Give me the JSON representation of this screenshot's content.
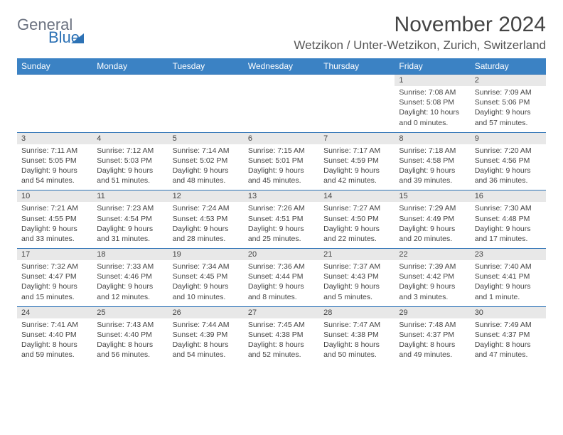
{
  "logo": {
    "line1": "General",
    "line2": "Blue"
  },
  "title": "November 2024",
  "location": "Wetzikon / Unter-Wetzikon, Zurich, Switzerland",
  "day_headers": [
    "Sunday",
    "Monday",
    "Tuesday",
    "Wednesday",
    "Thursday",
    "Friday",
    "Saturday"
  ],
  "colors": {
    "header_bg": "#3b82c4",
    "header_text": "#ffffff",
    "date_bg": "#e8e8e8",
    "border": "#2d72b5"
  },
  "weeks": [
    {
      "dates": [
        "",
        "",
        "",
        "",
        "",
        "1",
        "2"
      ],
      "cells": [
        "",
        "",
        "",
        "",
        "",
        "Sunrise: 7:08 AM\nSunset: 5:08 PM\nDaylight: 10 hours and 0 minutes.",
        "Sunrise: 7:09 AM\nSunset: 5:06 PM\nDaylight: 9 hours and 57 minutes."
      ]
    },
    {
      "dates": [
        "3",
        "4",
        "5",
        "6",
        "7",
        "8",
        "9"
      ],
      "cells": [
        "Sunrise: 7:11 AM\nSunset: 5:05 PM\nDaylight: 9 hours and 54 minutes.",
        "Sunrise: 7:12 AM\nSunset: 5:03 PM\nDaylight: 9 hours and 51 minutes.",
        "Sunrise: 7:14 AM\nSunset: 5:02 PM\nDaylight: 9 hours and 48 minutes.",
        "Sunrise: 7:15 AM\nSunset: 5:01 PM\nDaylight: 9 hours and 45 minutes.",
        "Sunrise: 7:17 AM\nSunset: 4:59 PM\nDaylight: 9 hours and 42 minutes.",
        "Sunrise: 7:18 AM\nSunset: 4:58 PM\nDaylight: 9 hours and 39 minutes.",
        "Sunrise: 7:20 AM\nSunset: 4:56 PM\nDaylight: 9 hours and 36 minutes."
      ]
    },
    {
      "dates": [
        "10",
        "11",
        "12",
        "13",
        "14",
        "15",
        "16"
      ],
      "cells": [
        "Sunrise: 7:21 AM\nSunset: 4:55 PM\nDaylight: 9 hours and 33 minutes.",
        "Sunrise: 7:23 AM\nSunset: 4:54 PM\nDaylight: 9 hours and 31 minutes.",
        "Sunrise: 7:24 AM\nSunset: 4:53 PM\nDaylight: 9 hours and 28 minutes.",
        "Sunrise: 7:26 AM\nSunset: 4:51 PM\nDaylight: 9 hours and 25 minutes.",
        "Sunrise: 7:27 AM\nSunset: 4:50 PM\nDaylight: 9 hours and 22 minutes.",
        "Sunrise: 7:29 AM\nSunset: 4:49 PM\nDaylight: 9 hours and 20 minutes.",
        "Sunrise: 7:30 AM\nSunset: 4:48 PM\nDaylight: 9 hours and 17 minutes."
      ]
    },
    {
      "dates": [
        "17",
        "18",
        "19",
        "20",
        "21",
        "22",
        "23"
      ],
      "cells": [
        "Sunrise: 7:32 AM\nSunset: 4:47 PM\nDaylight: 9 hours and 15 minutes.",
        "Sunrise: 7:33 AM\nSunset: 4:46 PM\nDaylight: 9 hours and 12 minutes.",
        "Sunrise: 7:34 AM\nSunset: 4:45 PM\nDaylight: 9 hours and 10 minutes.",
        "Sunrise: 7:36 AM\nSunset: 4:44 PM\nDaylight: 9 hours and 8 minutes.",
        "Sunrise: 7:37 AM\nSunset: 4:43 PM\nDaylight: 9 hours and 5 minutes.",
        "Sunrise: 7:39 AM\nSunset: 4:42 PM\nDaylight: 9 hours and 3 minutes.",
        "Sunrise: 7:40 AM\nSunset: 4:41 PM\nDaylight: 9 hours and 1 minute."
      ]
    },
    {
      "dates": [
        "24",
        "25",
        "26",
        "27",
        "28",
        "29",
        "30"
      ],
      "cells": [
        "Sunrise: 7:41 AM\nSunset: 4:40 PM\nDaylight: 8 hours and 59 minutes.",
        "Sunrise: 7:43 AM\nSunset: 4:40 PM\nDaylight: 8 hours and 56 minutes.",
        "Sunrise: 7:44 AM\nSunset: 4:39 PM\nDaylight: 8 hours and 54 minutes.",
        "Sunrise: 7:45 AM\nSunset: 4:38 PM\nDaylight: 8 hours and 52 minutes.",
        "Sunrise: 7:47 AM\nSunset: 4:38 PM\nDaylight: 8 hours and 50 minutes.",
        "Sunrise: 7:48 AM\nSunset: 4:37 PM\nDaylight: 8 hours and 49 minutes.",
        "Sunrise: 7:49 AM\nSunset: 4:37 PM\nDaylight: 8 hours and 47 minutes."
      ]
    }
  ]
}
